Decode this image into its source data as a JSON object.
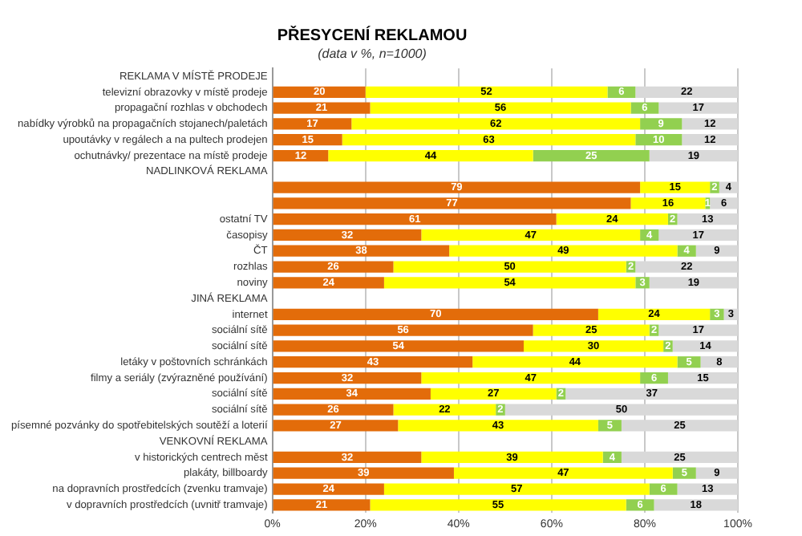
{
  "chart_data": {
    "type": "bar",
    "orientation": "horizontal",
    "stacked": true,
    "title": "PŘESYCENÍ REKLAMOU",
    "subtitle": "(data v %, n=1000)",
    "categories": [
      "REKLAMA V MÍSTĚ PRODEJE",
      "televizní obrazovky v místě prodeje",
      "propagační rozhlas v obchodech",
      "nabídky výrobků na propagačních stojanech/paletách",
      "upoutávky v regálech a na pultech prodejen",
      "ochutnávky/ prezentace na místě prodeje",
      "NADLINKOVÁ REKLAMA",
      null,
      null,
      "ostatní TV",
      "časopisy",
      "ČT",
      "rozhlas",
      "noviny",
      "JINÁ REKLAMA",
      "internet",
      "sociální sítě",
      "sociální sítě",
      "letáky v poštovních schránkách",
      "filmy a seriály (zvýrazněné používání)",
      "sociální sítě",
      "sociální sítě",
      "písemné pozvánky do spotřebitelských soutěží a loterií",
      "VENKOVNÍ REKLAMA",
      "v historických centrech měst",
      "plakáty, billboardy",
      "na dopravních prostředcích (zvenku tramvaje)",
      "v dopravních prostředcích (uvnitř tramvaje)"
    ],
    "series": [
      {
        "color": "#e36c0a",
        "values": [
          null,
          20,
          21,
          17,
          15,
          12,
          null,
          79,
          77,
          61,
          32,
          38,
          26,
          24,
          null,
          70,
          56,
          54,
          43,
          32,
          34,
          26,
          27,
          null,
          32,
          39,
          24,
          21
        ]
      },
      {
        "color": "#ffff00",
        "values": [
          null,
          52,
          56,
          62,
          63,
          44,
          null,
          15,
          16,
          24,
          47,
          49,
          50,
          54,
          null,
          24,
          25,
          30,
          44,
          47,
          27,
          22,
          43,
          null,
          39,
          47,
          57,
          55
        ]
      },
      {
        "color": "#92d050",
        "values": [
          null,
          6,
          6,
          9,
          10,
          25,
          null,
          2,
          1,
          2,
          4,
          4,
          2,
          3,
          null,
          3,
          2,
          2,
          5,
          6,
          2,
          2,
          5,
          null,
          4,
          5,
          6,
          6
        ]
      },
      {
        "color": "#d9d9d9",
        "values": [
          null,
          22,
          17,
          12,
          12,
          19,
          null,
          4,
          6,
          13,
          17,
          9,
          22,
          19,
          null,
          3,
          17,
          14,
          8,
          15,
          37,
          50,
          25,
          null,
          25,
          9,
          13,
          18
        ]
      }
    ],
    "xlim": [
      0,
      100
    ],
    "xticks": [
      {
        "value": 0,
        "label": "0%"
      },
      {
        "value": 20,
        "label": "20%"
      },
      {
        "value": 40,
        "label": "40%"
      },
      {
        "value": 60,
        "label": "60%"
      },
      {
        "value": 80,
        "label": "80%"
      },
      {
        "value": 100,
        "label": "100%"
      }
    ],
    "grid": "x",
    "data_labels": true
  }
}
